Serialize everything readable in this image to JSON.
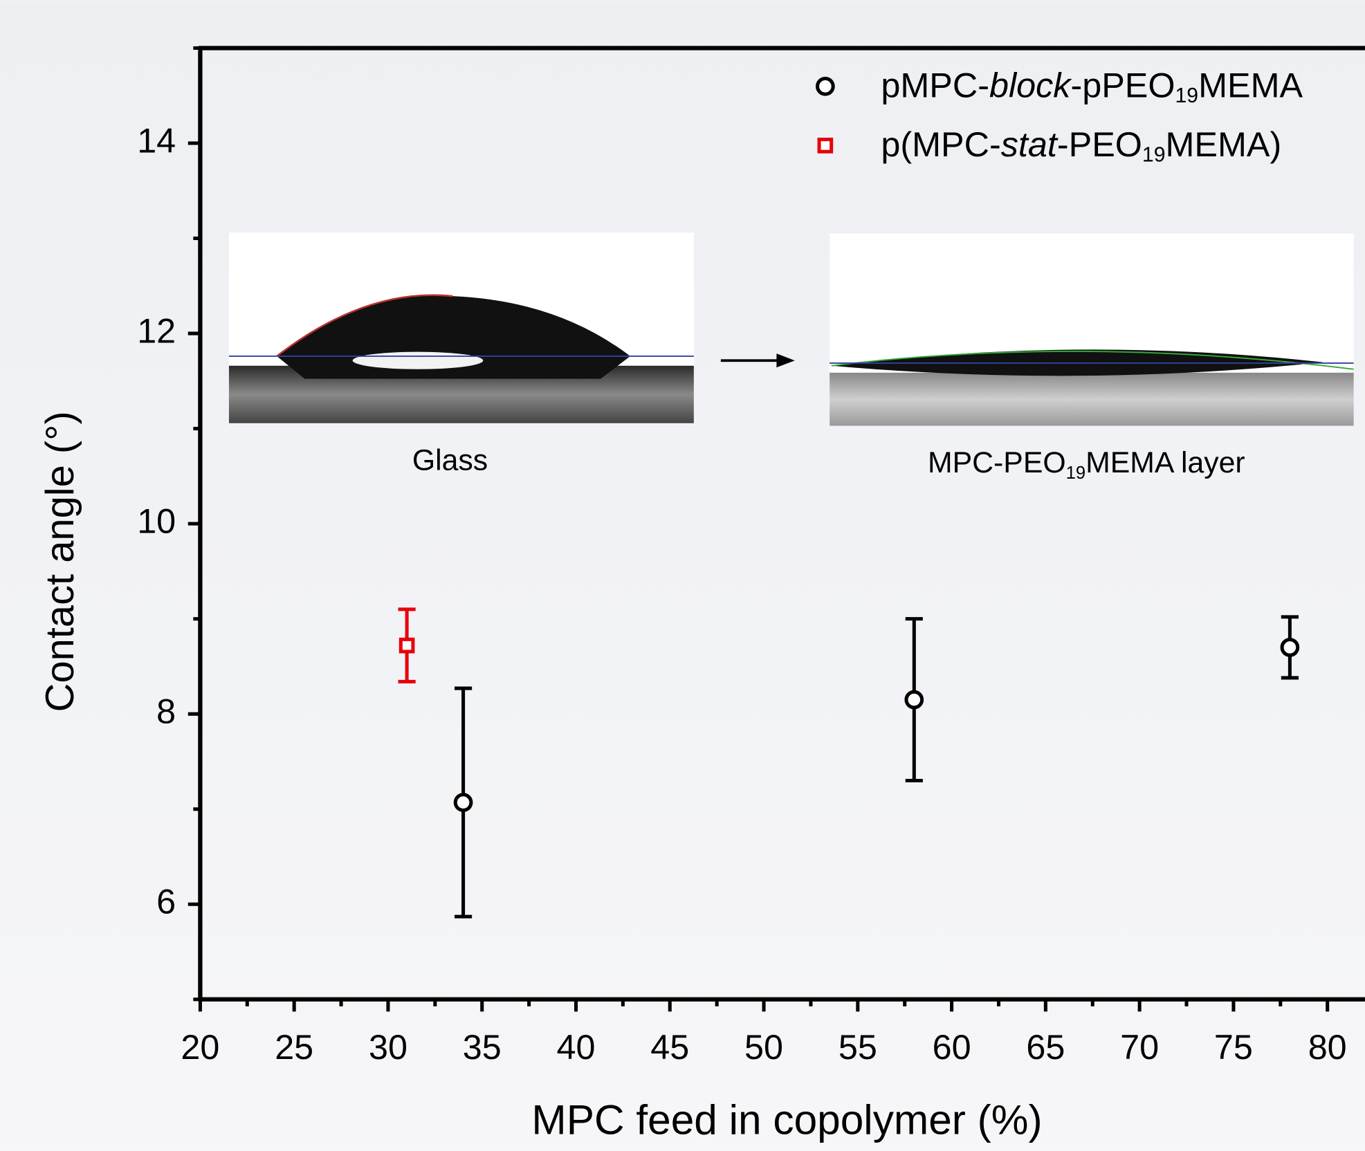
{
  "chart_data": {
    "type": "scatter",
    "xlabel": "MPC feed in copolymer (%)",
    "ylabel": "Contact angle (°)",
    "xlim": [
      20,
      82
    ],
    "xticks": [
      20,
      25,
      30,
      35,
      40,
      45,
      50,
      55,
      60,
      65,
      70,
      75,
      80
    ],
    "ylim": [
      5,
      15
    ],
    "yticks": [
      6,
      8,
      10,
      12,
      14
    ],
    "legend": "upper right",
    "series": [
      {
        "name": "pMPC-block-pPEO19MEMA",
        "color": "#000000",
        "marker": "circle",
        "x": [
          34,
          58,
          78
        ],
        "values": [
          7.07,
          8.15,
          8.7
        ],
        "errors": [
          1.2,
          0.85,
          0.32
        ]
      },
      {
        "name": "p(MPC-stat-PEO19MEMA)",
        "color": "#e8000b",
        "marker": "square",
        "x": [
          31
        ],
        "values": [
          8.72
        ],
        "errors": [
          0.38
        ]
      }
    ],
    "annotations": [
      "Glass",
      "MPC-PEO19MEMA layer"
    ]
  }
}
